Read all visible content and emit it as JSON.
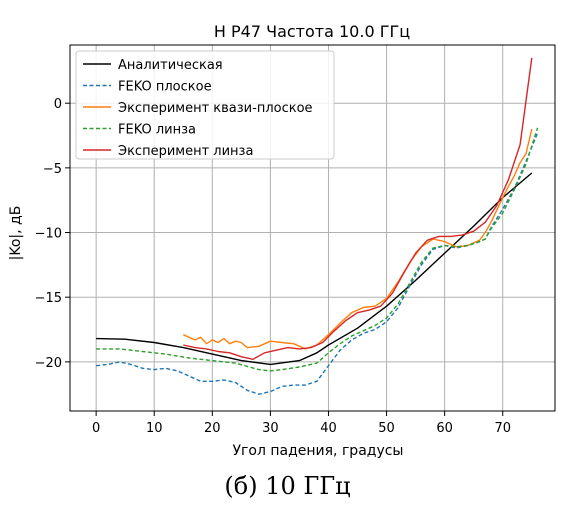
{
  "caption": "(б) 10 ГГц",
  "chart_data": {
    "type": "line",
    "title": "H P47 Частота 10.0 ГГц",
    "xlabel": "Угол падения, градусы",
    "ylabel": "|Ko|, дБ",
    "xlim": [
      -4.5,
      79
    ],
    "ylim": [
      -23.8,
      4.5
    ],
    "xticks": [
      0,
      10,
      20,
      30,
      40,
      50,
      60,
      70
    ],
    "yticks": [
      -20,
      -15,
      -10,
      -5,
      0
    ],
    "ytick_labels": [
      "−20",
      "−15",
      "−10",
      "−5",
      "0"
    ],
    "grid": true,
    "legend_position": "upper-left",
    "series": [
      {
        "name": "Аналитическая",
        "color": "#000000",
        "style": "solid",
        "points": [
          [
            0,
            -18.2
          ],
          [
            5,
            -18.25
          ],
          [
            10,
            -18.5
          ],
          [
            15,
            -18.9
          ],
          [
            20,
            -19.4
          ],
          [
            25,
            -19.9
          ],
          [
            30,
            -20.2
          ],
          [
            35,
            -19.9
          ],
          [
            38,
            -19.3
          ],
          [
            40,
            -18.7
          ],
          [
            45,
            -17.4
          ],
          [
            50,
            -15.7
          ],
          [
            55,
            -13.7
          ],
          [
            60,
            -11.6
          ],
          [
            65,
            -9.5
          ],
          [
            70,
            -7.3
          ],
          [
            75,
            -5.4
          ]
        ]
      },
      {
        "name": "FEKO плоское",
        "color": "#1f77b4",
        "style": "dashed",
        "points": [
          [
            0,
            -20.3
          ],
          [
            2,
            -20.2
          ],
          [
            4,
            -20.0
          ],
          [
            6,
            -20.2
          ],
          [
            8,
            -20.5
          ],
          [
            10,
            -20.6
          ],
          [
            12,
            -20.5
          ],
          [
            14,
            -20.7
          ],
          [
            16,
            -21.1
          ],
          [
            18,
            -21.5
          ],
          [
            20,
            -21.5
          ],
          [
            22,
            -21.4
          ],
          [
            24,
            -21.6
          ],
          [
            26,
            -22.2
          ],
          [
            28,
            -22.5
          ],
          [
            30,
            -22.3
          ],
          [
            32,
            -21.9
          ],
          [
            34,
            -21.8
          ],
          [
            36,
            -21.8
          ],
          [
            38,
            -21.5
          ],
          [
            40,
            -20.3
          ],
          [
            42,
            -19.1
          ],
          [
            44,
            -18.3
          ],
          [
            46,
            -17.8
          ],
          [
            48,
            -17.5
          ],
          [
            50,
            -16.9
          ],
          [
            52,
            -15.8
          ],
          [
            54,
            -14.1
          ],
          [
            56,
            -12.5
          ],
          [
            58,
            -11.3
          ],
          [
            60,
            -11.0
          ],
          [
            62,
            -11.2
          ],
          [
            64,
            -11.0
          ],
          [
            66,
            -10.7
          ],
          [
            67,
            -10.5
          ],
          [
            68,
            -9.6
          ],
          [
            70,
            -8.2
          ],
          [
            72,
            -6.6
          ],
          [
            74,
            -4.5
          ],
          [
            76,
            -2.3
          ]
        ]
      },
      {
        "name": "Эксперимент квази-плоское",
        "color": "#ff7f0e",
        "style": "solid",
        "points": [
          [
            15,
            -17.9
          ],
          [
            17,
            -18.3
          ],
          [
            18,
            -18.1
          ],
          [
            19,
            -18.6
          ],
          [
            20,
            -18.3
          ],
          [
            21,
            -18.5
          ],
          [
            22,
            -18.2
          ],
          [
            23,
            -18.6
          ],
          [
            24,
            -18.4
          ],
          [
            25,
            -18.5
          ],
          [
            26,
            -18.9
          ],
          [
            28,
            -18.8
          ],
          [
            30,
            -18.4
          ],
          [
            32,
            -18.5
          ],
          [
            34,
            -18.6
          ],
          [
            36,
            -19.0
          ],
          [
            38,
            -18.7
          ],
          [
            40,
            -17.9
          ],
          [
            42,
            -17.0
          ],
          [
            44,
            -16.2
          ],
          [
            46,
            -15.8
          ],
          [
            48,
            -15.7
          ],
          [
            50,
            -15.1
          ],
          [
            52,
            -13.8
          ],
          [
            54,
            -12.3
          ],
          [
            56,
            -11.1
          ],
          [
            58,
            -10.5
          ],
          [
            60,
            -10.7
          ],
          [
            62,
            -11.1
          ],
          [
            64,
            -11.0
          ],
          [
            66,
            -10.6
          ],
          [
            67,
            -10.0
          ],
          [
            68,
            -9.2
          ],
          [
            70,
            -7.3
          ],
          [
            72,
            -5.6
          ],
          [
            73,
            -4.6
          ],
          [
            74,
            -3.9
          ],
          [
            75,
            -2.0
          ]
        ]
      },
      {
        "name": "FEKO линза",
        "color": "#2ca02c",
        "style": "dashed",
        "points": [
          [
            0,
            -19.0
          ],
          [
            4,
            -19.0
          ],
          [
            8,
            -19.2
          ],
          [
            12,
            -19.4
          ],
          [
            16,
            -19.7
          ],
          [
            20,
            -19.9
          ],
          [
            24,
            -20.1
          ],
          [
            28,
            -20.6
          ],
          [
            30,
            -20.7
          ],
          [
            32,
            -20.6
          ],
          [
            35,
            -20.4
          ],
          [
            38,
            -20.1
          ],
          [
            40,
            -19.3
          ],
          [
            42,
            -18.6
          ],
          [
            44,
            -18.0
          ],
          [
            46,
            -17.6
          ],
          [
            48,
            -17.2
          ],
          [
            50,
            -16.6
          ],
          [
            52,
            -15.5
          ],
          [
            54,
            -13.9
          ],
          [
            56,
            -12.3
          ],
          [
            58,
            -11.2
          ],
          [
            60,
            -11.0
          ],
          [
            62,
            -11.1
          ],
          [
            64,
            -11.0
          ],
          [
            66,
            -10.7
          ],
          [
            67,
            -10.5
          ],
          [
            68,
            -9.7
          ],
          [
            70,
            -8.5
          ],
          [
            72,
            -6.7
          ],
          [
            74,
            -4.7
          ],
          [
            76,
            -1.9
          ]
        ]
      },
      {
        "name": "Эксперимент линза",
        "color": "#d62728",
        "style": "solid",
        "points": [
          [
            15,
            -18.7
          ],
          [
            17,
            -18.9
          ],
          [
            19,
            -19.0
          ],
          [
            21,
            -19.2
          ],
          [
            23,
            -19.3
          ],
          [
            25,
            -19.6
          ],
          [
            27,
            -19.8
          ],
          [
            29,
            -19.3
          ],
          [
            31,
            -19.1
          ],
          [
            33,
            -18.9
          ],
          [
            35,
            -19.0
          ],
          [
            37,
            -18.9
          ],
          [
            39,
            -18.5
          ],
          [
            41,
            -17.6
          ],
          [
            43,
            -16.8
          ],
          [
            45,
            -16.2
          ],
          [
            47,
            -16.0
          ],
          [
            49,
            -15.7
          ],
          [
            51,
            -14.7
          ],
          [
            53,
            -13.1
          ],
          [
            55,
            -11.6
          ],
          [
            57,
            -10.6
          ],
          [
            59,
            -10.3
          ],
          [
            61,
            -10.3
          ],
          [
            63,
            -10.2
          ],
          [
            65,
            -9.9
          ],
          [
            67,
            -9.2
          ],
          [
            69,
            -7.9
          ],
          [
            71,
            -5.9
          ],
          [
            73,
            -3.2
          ],
          [
            75,
            3.5
          ]
        ]
      }
    ]
  }
}
